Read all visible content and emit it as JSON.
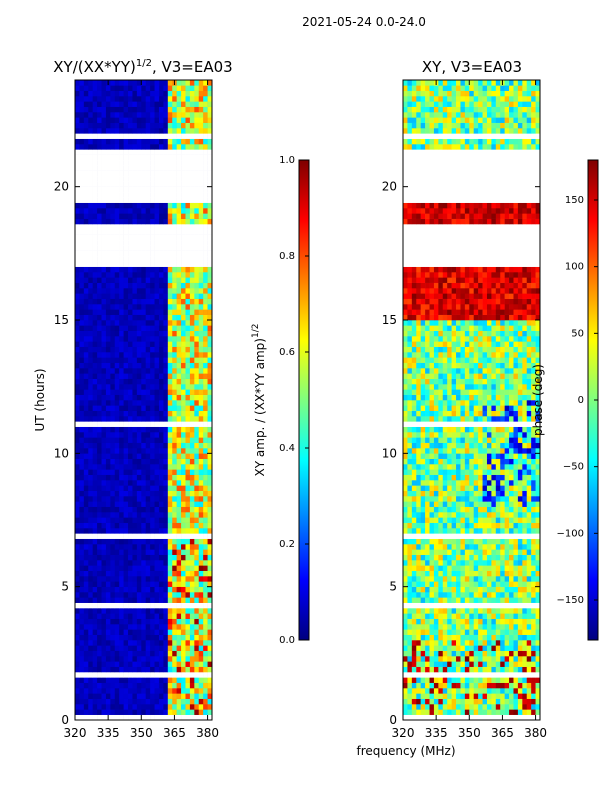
{
  "suptitle": "2021-05-24 0.0-24.0",
  "xlabel": "frequency (MHz)",
  "colors": {
    "jet": [
      "#00007f",
      "#0000ff",
      "#007fff",
      "#00ffff",
      "#7fff7f",
      "#ffff00",
      "#ff7f00",
      "#ff0000",
      "#7f0000"
    ],
    "gap": "#ffffff",
    "frame": "#000000"
  },
  "chart_data": [
    {
      "type": "heatmap",
      "title_main": "XY/(XX*YY)",
      "title_sup": "1/2",
      "title_tail": ", V3=EA03",
      "ylabel": "UT (hours)",
      "xlim": [
        320,
        382
      ],
      "ylim": [
        0,
        24
      ],
      "xticks": [
        "320",
        "335",
        "350",
        "365",
        "380"
      ],
      "xtick_values": [
        320,
        335,
        350,
        365,
        380
      ],
      "yticks": [
        "0",
        "5",
        "10",
        "15",
        "20"
      ],
      "ytick_values": [
        0,
        5,
        10,
        15,
        20
      ],
      "colorbar": {
        "label_main": "XY amp. / (XX*YY amp)",
        "label_sup": "1/2",
        "range": [
          0.0,
          1.0
        ],
        "ticks": [
          "0.0",
          "0.2",
          "0.4",
          "0.6",
          "0.8",
          "1.0"
        ],
        "tick_values": [
          0.0,
          0.2,
          0.4,
          0.6,
          0.8,
          1.0
        ]
      },
      "description": "amplitude mostly low (~0.05) across band; enhanced (0.3-0.9) in 362-382 MHz channels",
      "bright_band_mhz": [
        362,
        382
      ],
      "data_gaps_hours": [
        [
          17.0,
          18.7
        ],
        [
          19.3,
          21.4
        ]
      ]
    },
    {
      "type": "heatmap",
      "title_main": "XY",
      "title_sup": "",
      "title_tail": ", V3=EA03",
      "ylabel": "",
      "xlim": [
        320,
        382
      ],
      "ylim": [
        0,
        24
      ],
      "xticks": [
        "320",
        "335",
        "350",
        "365",
        "380"
      ],
      "xtick_values": [
        320,
        335,
        350,
        365,
        380
      ],
      "yticks": [
        "0",
        "5",
        "10",
        "15",
        "20"
      ],
      "ytick_values": [
        0,
        5,
        10,
        15,
        20
      ],
      "colorbar": {
        "label_main": "phase (deg)",
        "label_sup": "",
        "range": [
          -180,
          180
        ],
        "ticks": [
          "−150",
          "−100",
          "−50",
          "0",
          "50",
          "100",
          "150"
        ],
        "tick_values": [
          -150,
          -100,
          -50,
          0,
          50,
          100,
          150
        ]
      },
      "description": "phase varies widely; strong positive phase (100-180 deg) for UT 15-17 h",
      "data_gaps_hours": [
        [
          17.0,
          18.7
        ],
        [
          19.3,
          21.4
        ]
      ]
    }
  ]
}
